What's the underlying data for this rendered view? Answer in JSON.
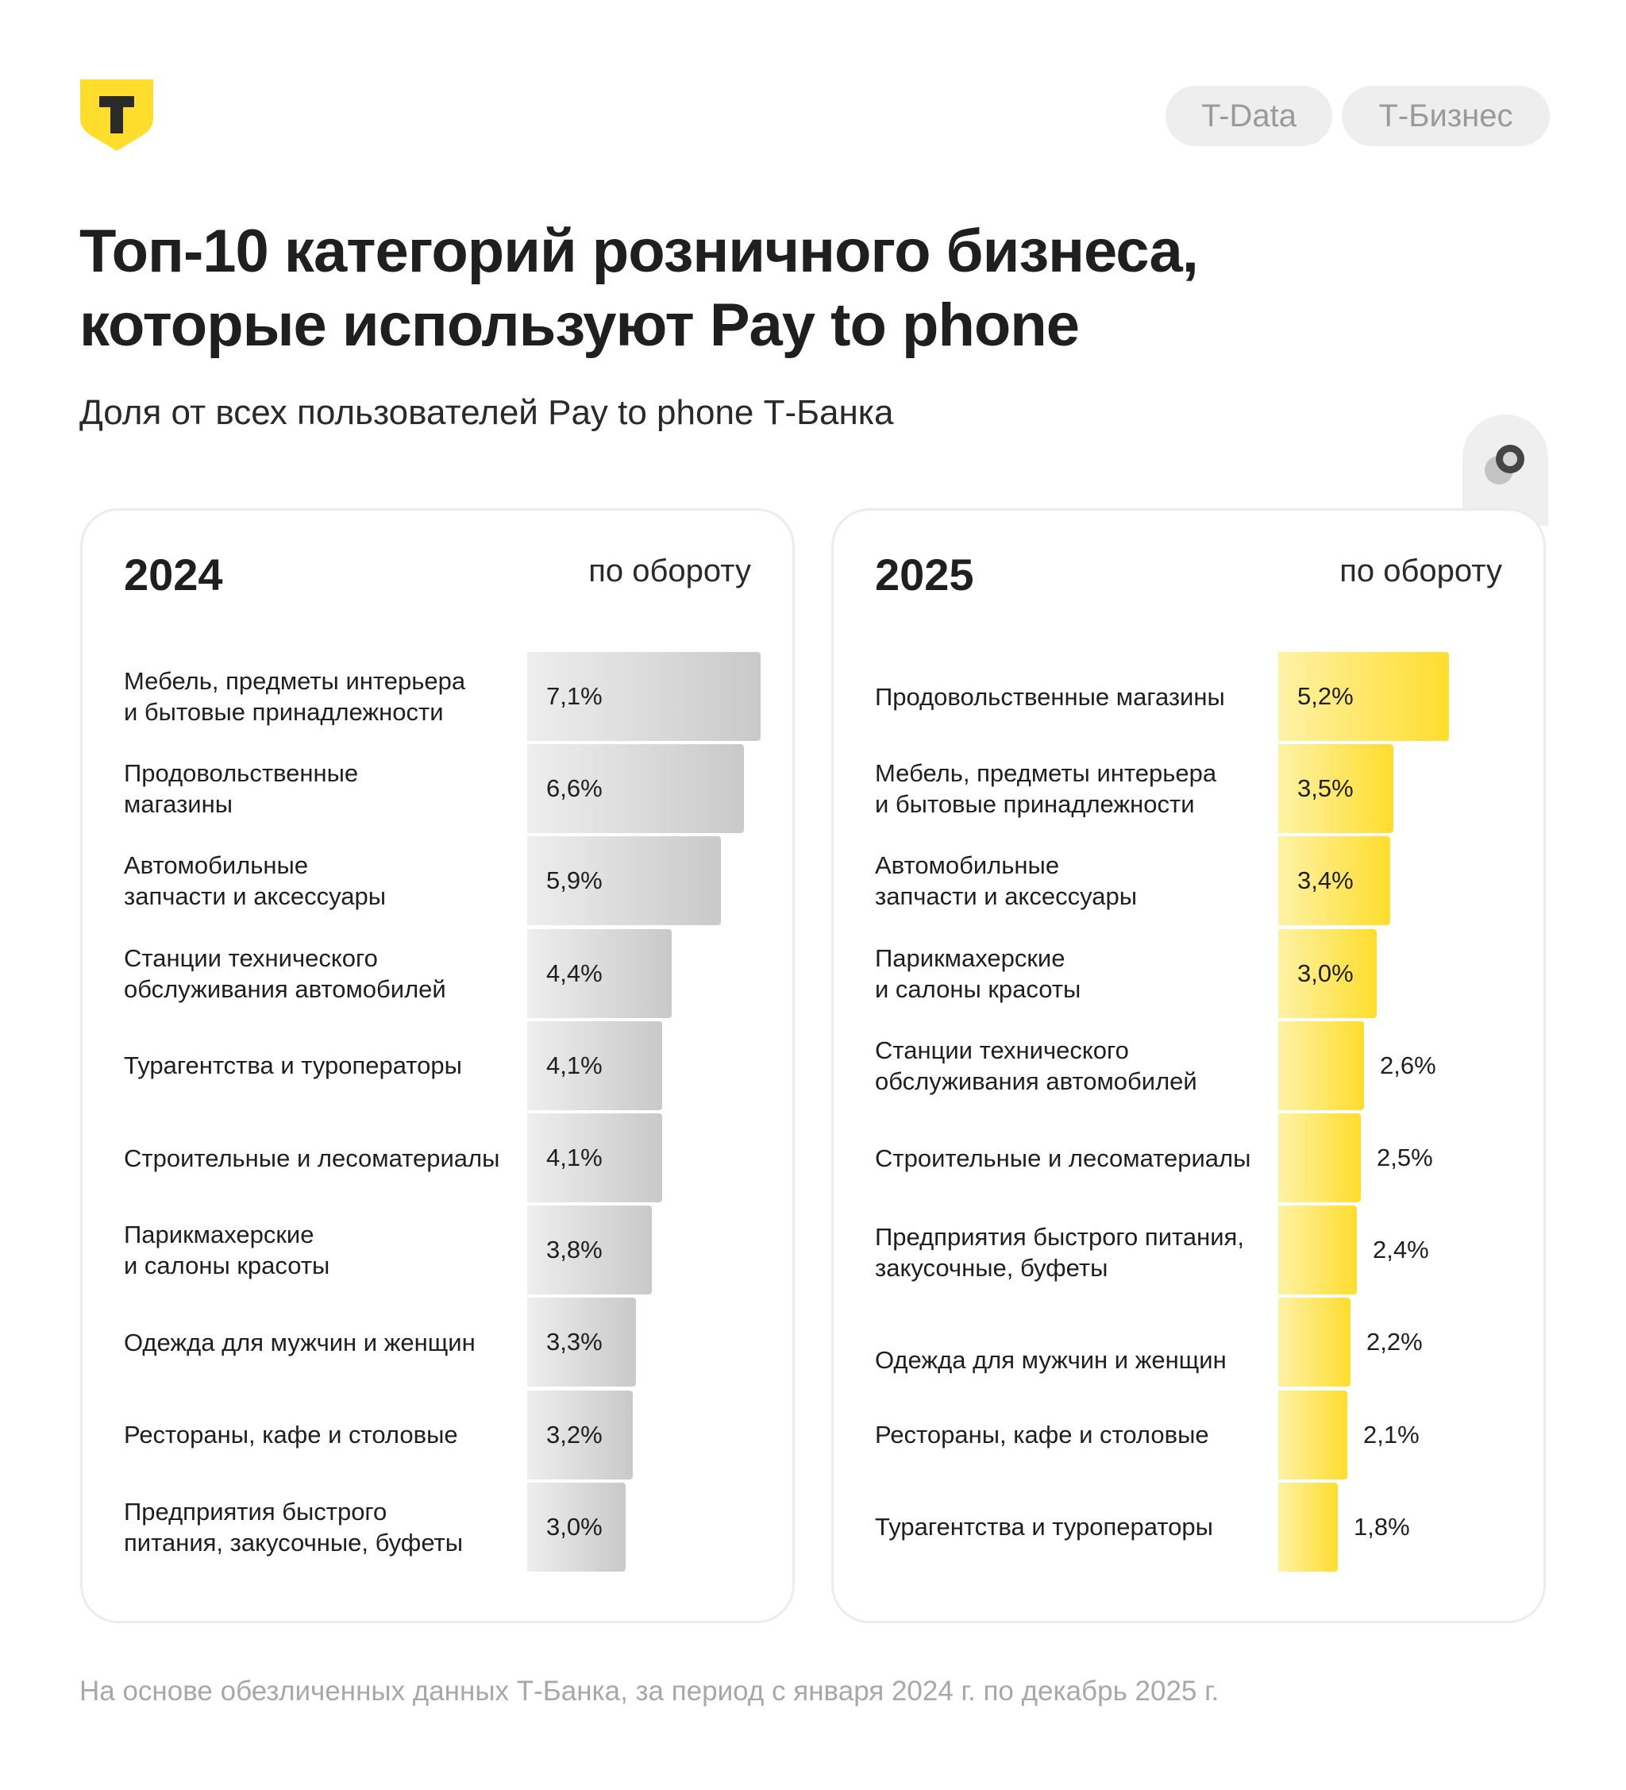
{
  "header": {
    "tags": [
      "T-Data",
      "Т-Бизнес"
    ],
    "title_lines": [
      "Топ-10 категорий розничного бизнеса,",
      "которые используют Pay to phone"
    ],
    "subtitle": "Доля от всех пользователей Pay to phone Т-Банка"
  },
  "colors": {
    "brand_yellow": "#ffdd2d",
    "bar_grey_end": "#c9c9c9",
    "text_dark": "#1f1f1f",
    "footer_grey": "#a8a8a8"
  },
  "chart_data": [
    {
      "type": "bar",
      "orientation": "horizontal",
      "title": "2024",
      "metric_label": "по обороту",
      "value_unit": "%",
      "categories": [
        "Мебель, предметы интерьера\nи бытовые принадлежности",
        "Продовольственные\nмагазины",
        "Автомобильные\nзапчасти и аксессуары",
        "Станции технического\nобслуживания автомобилей",
        "Турагентства и туроператоры",
        "Строительные и лесоматериалы",
        "Парикмахерские\nи салоны красоты",
        "Одежда для мужчин и женщин",
        "Рестораны, кафе и столовые",
        "Предприятия быстрого\nпитания, закусочные, буфеты"
      ],
      "values": [
        7.1,
        6.6,
        5.9,
        4.4,
        4.1,
        4.1,
        3.8,
        3.3,
        3.2,
        3.0
      ],
      "value_labels": [
        "7,1%",
        "6,6%",
        "5,9%",
        "4,4%",
        "4,1%",
        "4,1%",
        "3,8%",
        "3,3%",
        "3,2%",
        "3,0%"
      ],
      "xlim": [
        0,
        7.1
      ]
    },
    {
      "type": "bar",
      "orientation": "horizontal",
      "title": "2025",
      "metric_label": "по обороту",
      "value_unit": "%",
      "categories": [
        "Продовольственные магазины",
        "Мебель, предметы интерьера\nи бытовые принадлежности",
        "Автомобильные\nзапчасти и аксессуары",
        "Парикмахерские\nи салоны красоты",
        "Станции технического\nобслуживания автомобилей",
        "Строительные и лесоматериалы",
        "Предприятия быстрого питания,\nзакусочные, буфеты",
        "Одежда для мужчин и женщин",
        "Рестораны, кафе и столовые",
        "Турагентства и туроператоры"
      ],
      "values": [
        5.2,
        3.5,
        3.4,
        3.0,
        2.6,
        2.5,
        2.4,
        2.2,
        2.1,
        1.8
      ],
      "value_labels": [
        "5,2%",
        "3,5%",
        "3,4%",
        "3,0%",
        "2,6%",
        "2,5%",
        "2,4%",
        "2,2%",
        "2,1%",
        "1,8%"
      ],
      "xlim": [
        0,
        7.1
      ]
    }
  ],
  "footer": "На основе обезличенных данных Т-Банка, за период с января 2024 г. по декабрь 2025 г."
}
